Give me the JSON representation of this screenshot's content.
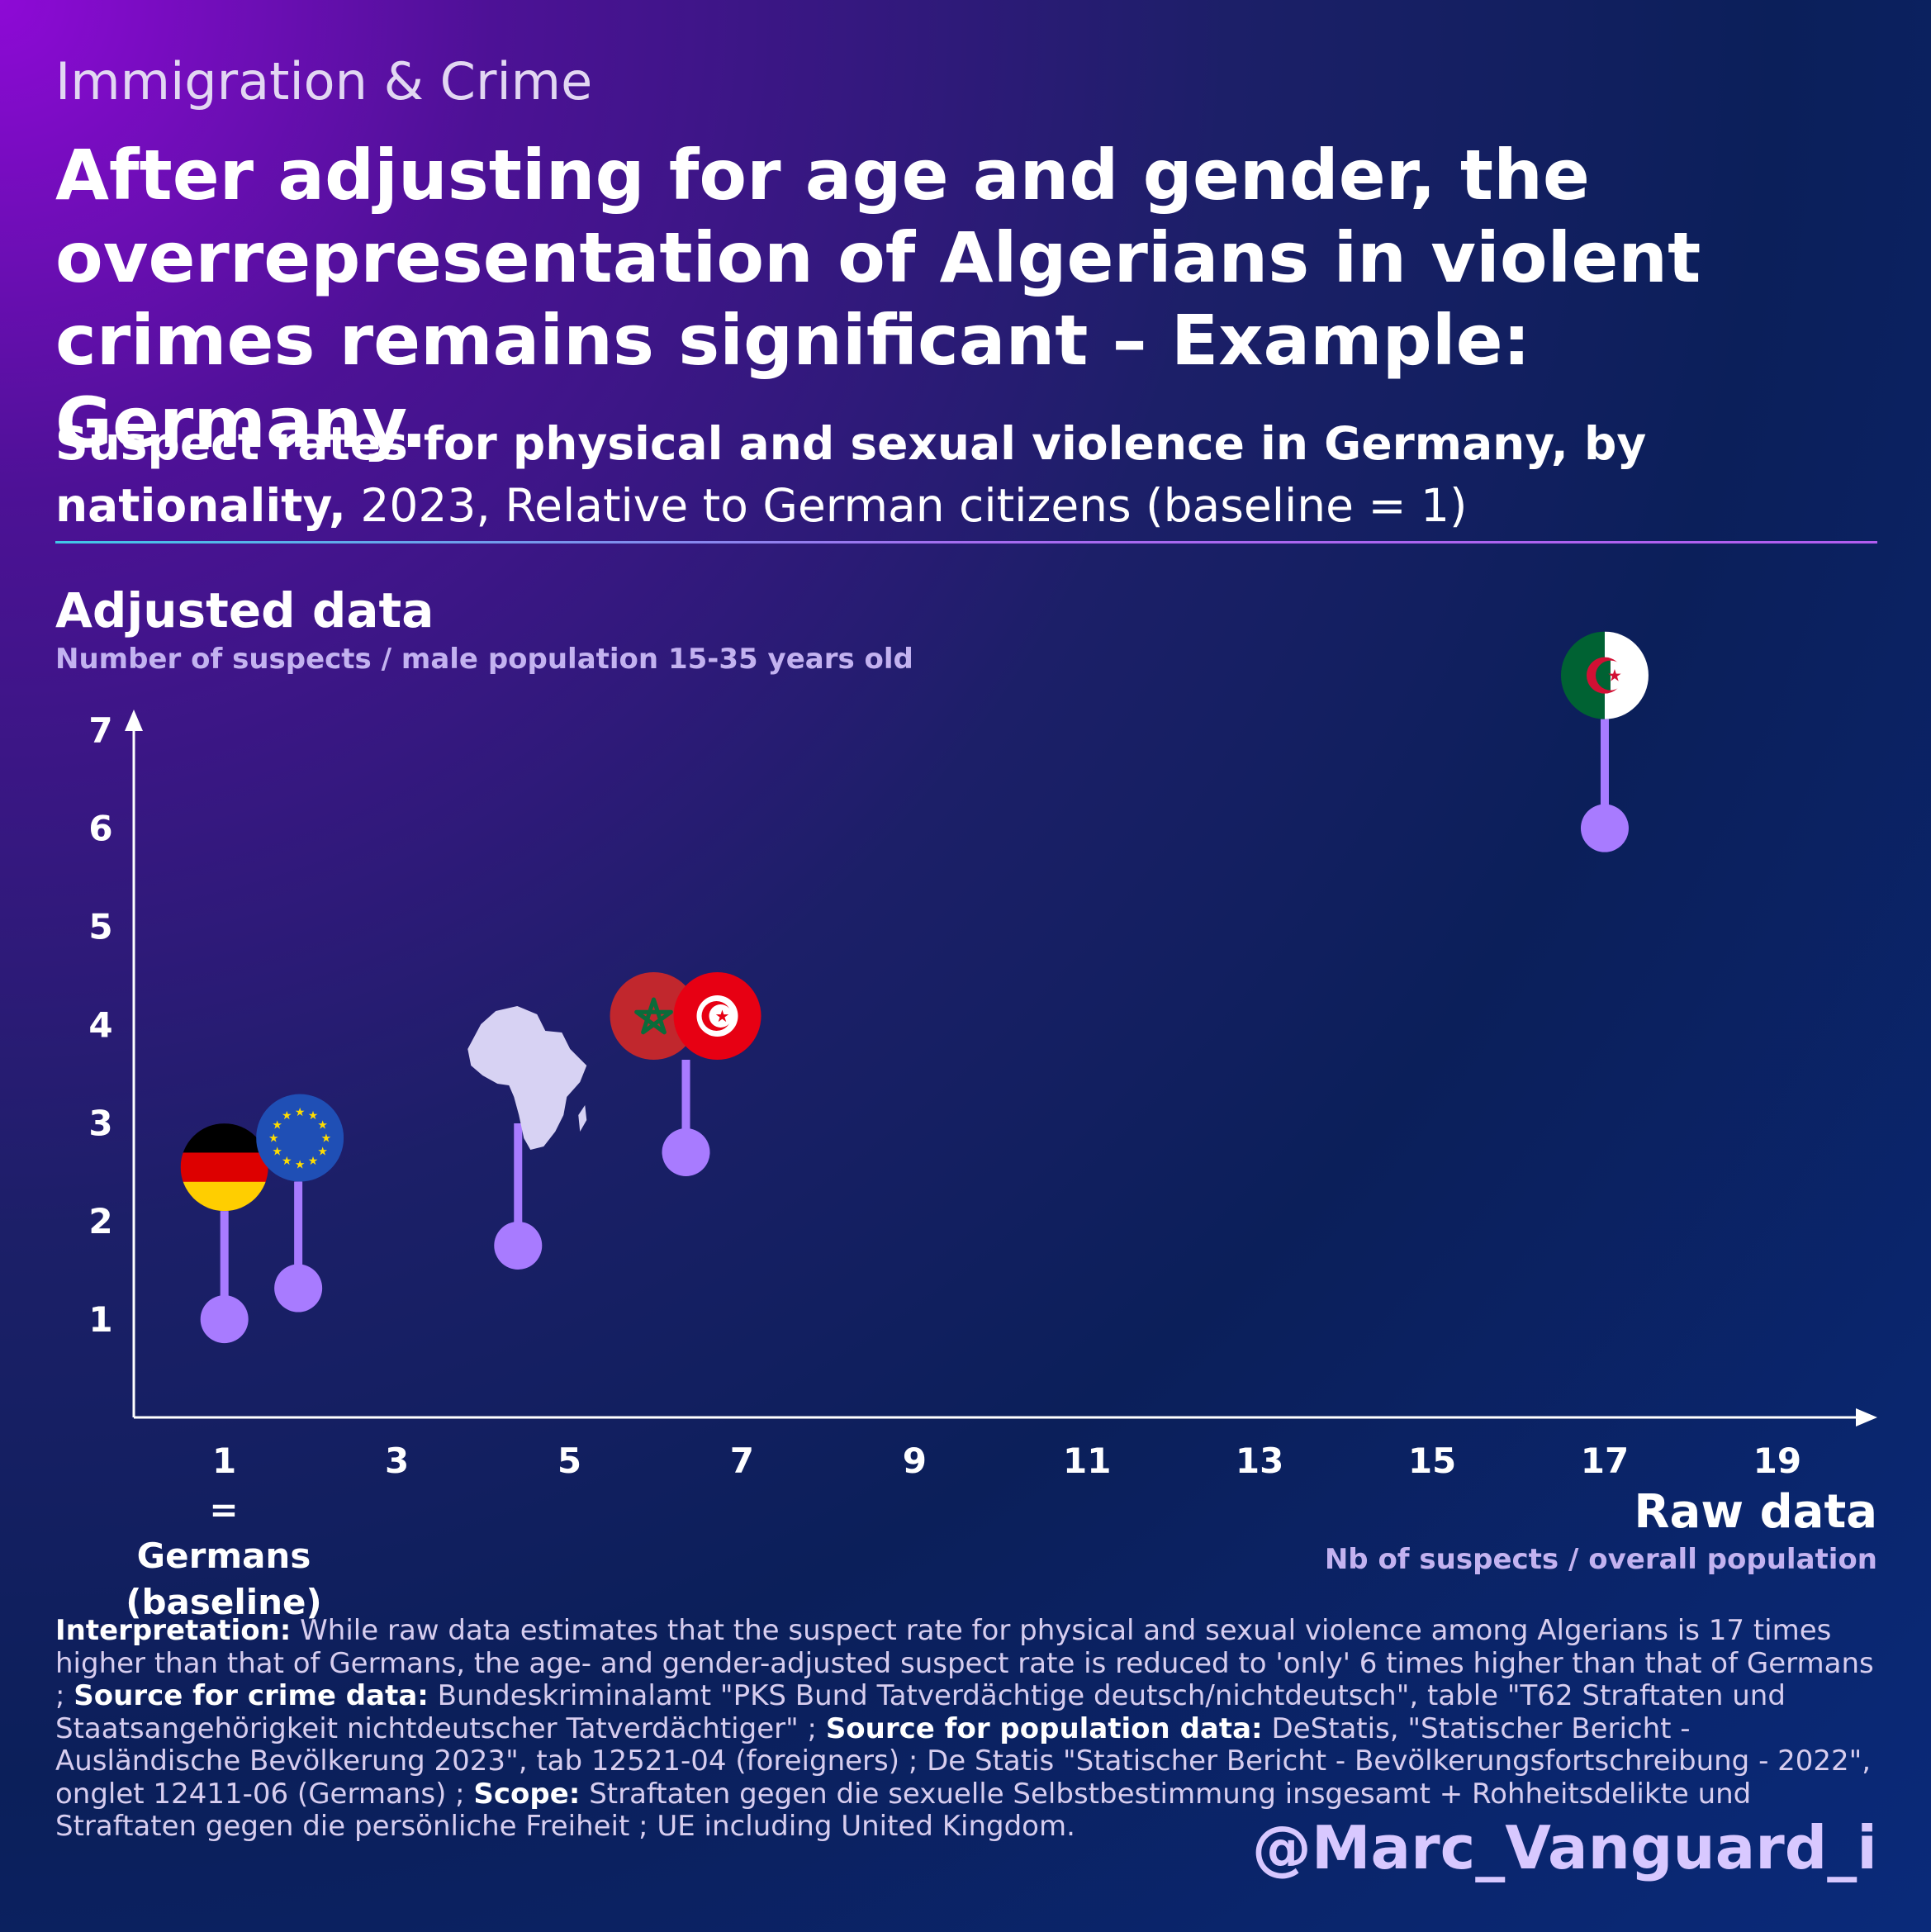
{
  "kicker": "Immigration & Crime",
  "headline": "After adjusting for age and gender, the overrepresentation of Algerians in violent crimes remains significant – Example: Germany.",
  "subtitle": {
    "bold": "Suspect rates for physical and sexual violence in Germany, by nationality,",
    "regular": " 2023, Relative to German citizens (baseline = 1)"
  },
  "y_axis": {
    "title": "Adjusted data",
    "subtitle": "Number of suspects / male population 15-35 years old"
  },
  "x_axis": {
    "title": "Raw data",
    "subtitle": "Nb of suspects / overall population",
    "baseline_label": "= Germans (baseline)"
  },
  "notes": {
    "interpretation_label": "Interpretation:",
    "interpretation": " While raw data estimates that the suspect rate for physical and sexual violence among Algerians is 17 times higher than that of Germans, the age- and gender-adjusted suspect rate is reduced to 'only' 6 times higher than that of Germans ; ",
    "crime_source_label": "Source for crime data:",
    "crime_source": " Bundeskriminalamt \"PKS Bund Tatverdächtige deutsch/nichtdeutsch\", table \"T62 Straftaten und Staatsangehörigkeit nichtdeutscher Tatverdächtiger\" ; ",
    "population_source_label": "Source for population data:",
    "population_source": " DeStatis, \"Statischer Bericht - Ausländische Bevölkerung 2023\", tab 12521-04 (foreigners) ; De Statis \"Statischer Bericht - Bevölkerungsfortschreibung - 2022\", onglet 12411-06 (Germans) ; ",
    "scope_label": "Scope:",
    "scope": " Straftaten gegen die sexuelle Selbstbestimmung insgesamt + Rohheitsdelikte und Straftaten gegen die persönliche Freiheit ; UE including United Kingdom."
  },
  "handle": "@Marc_Vanguard_i",
  "colors": {
    "marker": "#a87bff",
    "axis": "#ffffff"
  },
  "chart_data": {
    "type": "scatter",
    "xlabel": "Raw data",
    "ylabel": "Adjusted data",
    "xticks": [
      1,
      3,
      5,
      7,
      9,
      11,
      13,
      15,
      17,
      19
    ],
    "yticks": [
      1,
      2,
      3,
      4,
      5,
      6,
      7
    ],
    "xlim": [
      -0.05,
      20.15
    ],
    "ylim": [
      -0.0,
      7.2
    ],
    "points": [
      {
        "icon": "germany-flag-icon",
        "x": 1.0,
        "y": 1.0
      },
      {
        "icon": "eu-flag-icon",
        "x": 2.0,
        "y": 1.4
      },
      {
        "icon": "africa-map-icon",
        "x": 4.5,
        "y": 1.75
      },
      {
        "icon": "tunisia-flag-icon",
        "x": 6.35,
        "y": 2.7
      },
      {
        "icon": "morocco-flag-icon",
        "x": 6.35,
        "y": 2.7
      },
      {
        "icon": "algeria-flag-icon",
        "x": 17.0,
        "y": 6.0
      }
    ]
  }
}
